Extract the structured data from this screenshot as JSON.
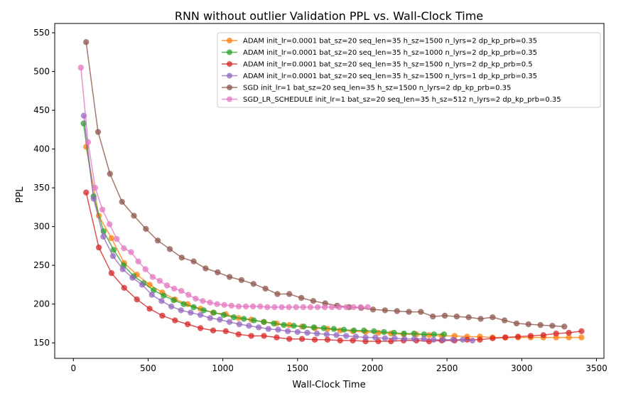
{
  "chart_data": {
    "type": "line",
    "title": "RNN without outlier Validation PPL vs. Wall-Clock Time",
    "xlabel": "Wall-Clock Time",
    "ylabel": "PPL",
    "xlim": [
      -125,
      3550
    ],
    "ylim": [
      130,
      562
    ],
    "xticks": [
      0,
      500,
      1000,
      1500,
      2000,
      2500,
      3000,
      3500
    ],
    "yticks": [
      150,
      200,
      250,
      300,
      350,
      400,
      450,
      500,
      550
    ],
    "grid": false,
    "legend_position": "top-right",
    "series": [
      {
        "name": "ADAM init_lr=0.0001 bat_sz=20 seq_len=35 h_sz=1500 n_lyrs=2 dp_kp_prb=0.35",
        "color": "#ff7f0e",
        "x": [
          85,
          170,
          255,
          340,
          425,
          510,
          595,
          680,
          765,
          850,
          935,
          1020,
          1105,
          1190,
          1275,
          1360,
          1445,
          1530,
          1615,
          1700,
          1785,
          1870,
          1955,
          2040,
          2125,
          2210,
          2295,
          2380,
          2465,
          2550,
          2635,
          2720,
          2805,
          2890,
          2975,
          3060,
          3145,
          3230,
          3315,
          3400
        ],
        "y": [
          403,
          314,
          285,
          253,
          238,
          225,
          215,
          206,
          200,
          194,
          189,
          187,
          182,
          180,
          177,
          175,
          173,
          171,
          169,
          168,
          166,
          165,
          164,
          163,
          162,
          161,
          161,
          160,
          159,
          159,
          158,
          158,
          157,
          157,
          157,
          157,
          157,
          157,
          157,
          157
        ]
      },
      {
        "name": "ADAM init_lr=0.0001 bat_sz=20 seq_len=35 h_sz=1000 n_lyrs=2 dp_kp_prb=0.35",
        "color": "#2ca02c",
        "x": [
          68,
          135,
          202,
          269,
          336,
          403,
          470,
          537,
          604,
          671,
          738,
          805,
          872,
          939,
          1006,
          1073,
          1140,
          1207,
          1274,
          1341,
          1408,
          1475,
          1542,
          1609,
          1676,
          1743,
          1810,
          1877,
          1944,
          2011,
          2078,
          2145,
          2212,
          2279,
          2346,
          2413,
          2480
        ],
        "y": [
          433,
          339,
          294,
          270,
          250,
          236,
          227,
          218,
          211,
          205,
          200,
          196,
          192,
          189,
          186,
          183,
          181,
          179,
          177,
          175,
          173,
          172,
          171,
          170,
          169,
          168,
          167,
          166,
          166,
          165,
          164,
          163,
          162,
          162,
          161,
          161,
          161
        ]
      },
      {
        "name": "ADAM init_lr=0.0001 bat_sz=20 seq_len=35 h_sz=1500 n_lyrs=2 dp_kp_prb=0.5",
        "color": "#d62728",
        "x": [
          85,
          170,
          255,
          340,
          425,
          510,
          595,
          680,
          765,
          850,
          935,
          1020,
          1105,
          1190,
          1275,
          1360,
          1445,
          1530,
          1615,
          1700,
          1785,
          1870,
          1955,
          2040,
          2125,
          2210,
          2295,
          2380,
          2465,
          2550,
          2635,
          2720,
          2805,
          2890,
          2975,
          3060,
          3145,
          3230,
          3315,
          3400
        ],
        "y": [
          344,
          273,
          240,
          221,
          206,
          194,
          185,
          179,
          174,
          169,
          166,
          165,
          161,
          159,
          159,
          157,
          155,
          155,
          154,
          154,
          153,
          153,
          152,
          152,
          152,
          153,
          153,
          152,
          153,
          153,
          154,
          154,
          156,
          157,
          158,
          159,
          160,
          162,
          163,
          165
        ]
      },
      {
        "name": "ADAM init_lr=0.0001 bat_sz=20 seq_len=35 h_sz=1500 n_lyrs=1 dp_kp_prb=0.35",
        "color": "#9467bd",
        "x": [
          70,
          135,
          200,
          265,
          330,
          395,
          460,
          525,
          590,
          655,
          720,
          785,
          850,
          915,
          980,
          1045,
          1110,
          1175,
          1240,
          1305,
          1370,
          1435,
          1500,
          1565,
          1630,
          1695,
          1760,
          1825,
          1890,
          1955,
          2020,
          2085,
          2150,
          2215,
          2280,
          2345,
          2410,
          2475,
          2540,
          2605,
          2670
        ],
        "y": [
          443,
          336,
          287,
          262,
          245,
          234,
          225,
          212,
          204,
          197,
          192,
          189,
          186,
          182,
          180,
          177,
          174,
          172,
          170,
          168,
          167,
          165,
          164,
          163,
          162,
          161,
          160,
          159,
          158,
          157,
          157,
          156,
          156,
          155,
          155,
          155,
          154,
          154,
          154,
          154,
          153
        ]
      },
      {
        "name": "SGD init_lr=1 bat_sz=20 seq_len=35 h_sz=1500 n_lyrs=2 dp_kp_prb=0.35",
        "color": "#8c564b",
        "x": [
          85,
          165,
          245,
          325,
          405,
          485,
          565,
          645,
          725,
          805,
          885,
          965,
          1045,
          1125,
          1205,
          1285,
          1365,
          1445,
          1525,
          1605,
          1685,
          1765,
          1845,
          1925,
          2005,
          2085,
          2165,
          2245,
          2325,
          2405,
          2485,
          2565,
          2645,
          2725,
          2805,
          2885,
          2965,
          3045,
          3125,
          3205,
          3285
        ],
        "y": [
          538,
          422,
          368,
          332,
          314,
          297,
          282,
          271,
          260,
          255,
          246,
          241,
          235,
          231,
          226,
          220,
          213,
          213,
          208,
          204,
          201,
          198,
          196,
          195,
          193,
          192,
          191,
          190,
          190,
          184,
          185,
          184,
          183,
          181,
          183,
          179,
          175,
          174,
          173,
          172,
          171
        ]
      },
      {
        "name": "SGD_LR_SCHEDULE init_lr=1 bat_sz=20 seq_len=35 h_sz=512 n_lyrs=2 dp_kp_prb=0.35",
        "color": "#e377c2",
        "x": [
          50,
          98,
          146,
          194,
          242,
          290,
          338,
          386,
          434,
          482,
          530,
          578,
          626,
          674,
          722,
          770,
          818,
          866,
          914,
          962,
          1010,
          1058,
          1106,
          1154,
          1202,
          1250,
          1298,
          1346,
          1394,
          1442,
          1490,
          1538,
          1586,
          1634,
          1682,
          1730,
          1778,
          1826,
          1874,
          1922,
          1970
        ],
        "y": [
          505,
          409,
          350,
          322,
          303,
          284,
          272,
          267,
          255,
          245,
          235,
          230,
          224,
          220,
          217,
          212,
          207,
          204,
          202,
          200,
          199,
          198,
          197,
          197,
          197,
          197,
          196,
          196,
          196,
          196,
          196,
          196,
          196,
          196,
          196,
          196,
          196,
          196,
          196,
          196,
          196
        ]
      }
    ]
  }
}
